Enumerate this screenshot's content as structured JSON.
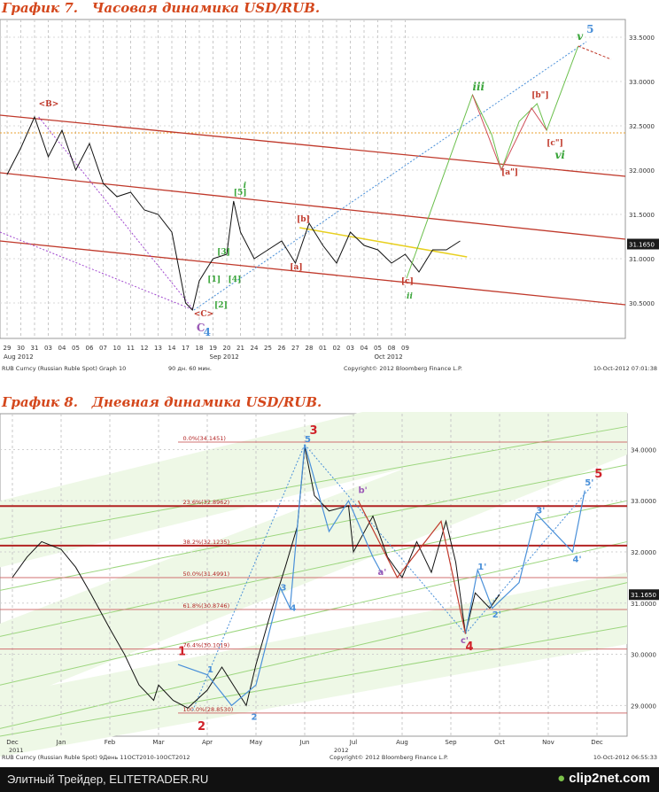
{
  "page": {
    "footer_left": "Элитный Трейдер, ELITETRADER.RU",
    "footer_logo": "clip2net.com"
  },
  "chart_data": [
    {
      "type": "line",
      "title": "График 7.   Часовая динамика USD/RUB.",
      "interval": "hourly",
      "price_labels": [
        "33.5000",
        "33.0000",
        "32.5000",
        "32.0000",
        "31.5000",
        "31.0000",
        "30.5000"
      ],
      "price_values": [
        33.5,
        33.0,
        32.5,
        32.0,
        31.5,
        31.0,
        30.5
      ],
      "ylim": [
        30.1,
        33.7
      ],
      "last_price": "31.1650",
      "x_ticks": [
        "29",
        "30",
        "31",
        "03",
        "04",
        "05",
        "06",
        "07",
        "10",
        "11",
        "12",
        "13",
        "14",
        "17",
        "18",
        "19",
        "20",
        "21",
        "24",
        "25",
        "26",
        "27",
        "28",
        "01",
        "02",
        "03",
        "04",
        "05",
        "08",
        "09"
      ],
      "month_labels": [
        "Aug 2012",
        "Sep 2012",
        "Oct 2012"
      ],
      "footer_left": "RUB Curncy (Russian Ruble Spot) Graph 10",
      "footer_mid": "90 дн. 60 мин.",
      "footer_copyright": "Copyright© 2012 Bloomberg Finance L.P.",
      "footer_right": "10-Oct-2012 07:01:38",
      "price_path": [
        [
          0,
          31.95
        ],
        [
          1,
          32.25
        ],
        [
          2,
          32.6
        ],
        [
          3,
          32.15
        ],
        [
          4,
          32.45
        ],
        [
          5,
          32.0
        ],
        [
          6,
          32.3
        ],
        [
          7,
          31.85
        ],
        [
          8,
          31.7
        ],
        [
          9,
          31.75
        ],
        [
          10,
          31.55
        ],
        [
          11,
          31.5
        ],
        [
          12,
          31.3
        ],
        [
          13,
          30.5
        ],
        [
          13.5,
          30.42
        ],
        [
          14,
          30.75
        ],
        [
          15,
          31.0
        ],
        [
          16,
          31.05
        ],
        [
          16.5,
          31.65
        ],
        [
          17,
          31.3
        ],
        [
          18,
          31.0
        ],
        [
          19,
          31.1
        ],
        [
          20,
          31.2
        ],
        [
          21,
          30.95
        ],
        [
          22,
          31.4
        ],
        [
          23,
          31.15
        ],
        [
          24,
          30.95
        ],
        [
          25,
          31.3
        ],
        [
          26,
          31.15
        ],
        [
          27,
          31.1
        ],
        [
          28,
          30.95
        ],
        [
          29,
          31.05
        ],
        [
          30,
          30.85
        ],
        [
          31,
          31.1
        ],
        [
          32,
          31.1
        ],
        [
          33,
          31.2
        ]
      ],
      "wave_labels": [
        {
          "text": "<B>",
          "color": "#c0392b",
          "x": 2.3,
          "y": 32.72
        },
        {
          "text": "<C>",
          "color": "#c0392b",
          "x": 13.6,
          "y": 30.35
        },
        {
          "text": "C",
          "color": "#9b59b6",
          "x": 13.8,
          "y": 30.18
        },
        {
          "text": "4",
          "color": "#4a90d9",
          "x": 14.3,
          "y": 30.13
        },
        {
          "text": "[1]",
          "color": "#3aa53a",
          "x": 14.6,
          "y": 30.74
        },
        {
          "text": "[2]",
          "color": "#3aa53a",
          "x": 15.1,
          "y": 30.45
        },
        {
          "text": "[3]",
          "color": "#3aa53a",
          "x": 15.3,
          "y": 31.05
        },
        {
          "text": "[4]",
          "color": "#3aa53a",
          "x": 16.1,
          "y": 30.74
        },
        {
          "text": "[5]",
          "color": "#3aa53a",
          "x": 16.5,
          "y": 31.72
        },
        {
          "text": "i",
          "color": "#3aa53a",
          "x": 17.2,
          "y": 31.8
        },
        {
          "text": "[a]",
          "color": "#c0392b",
          "x": 20.6,
          "y": 30.88
        },
        {
          "text": "[b]",
          "color": "#c0392b",
          "x": 21.1,
          "y": 31.42
        },
        {
          "text": "[c]",
          "color": "#c0392b",
          "x": 28.7,
          "y": 30.72
        },
        {
          "text": "ii",
          "color": "#3aa53a",
          "x": 29.1,
          "y": 30.55
        },
        {
          "text": "iii",
          "color": "#3aa53a",
          "x": 33.9,
          "y": 32.9
        },
        {
          "text": "[a\"]",
          "color": "#c0392b",
          "x": 36.0,
          "y": 31.95
        },
        {
          "text": "[b\"]",
          "color": "#c0392b",
          "x": 38.2,
          "y": 32.82
        },
        {
          "text": "[c\"]",
          "color": "#c0392b",
          "x": 39.3,
          "y": 32.28
        },
        {
          "text": "vi",
          "color": "#3aa53a",
          "x": 39.9,
          "y": 32.13
        },
        {
          "text": "v",
          "color": "#3aa53a",
          "x": 41.5,
          "y": 33.47
        },
        {
          "text": "5",
          "color": "#4a90d9",
          "x": 42.2,
          "y": 33.55
        }
      ]
    },
    {
      "type": "line",
      "title": "График 8.   Дневная динамика USD/RUB.",
      "interval": "daily",
      "price_labels": [
        "34.0000",
        "33.0000",
        "32.0000",
        "31.0000",
        "30.0000",
        "29.0000"
      ],
      "price_values": [
        34.0,
        33.0,
        32.0,
        31.0,
        30.0,
        29.0
      ],
      "ylim": [
        28.4,
        34.7
      ],
      "last_price": "31.1650",
      "x_ticks": [
        "Dec",
        "Jan",
        "Feb",
        "Mar",
        "Apr",
        "May",
        "Jun",
        "Jul",
        "Aug",
        "Sep",
        "Oct",
        "Nov",
        "Dec"
      ],
      "year_labels": [
        "2011",
        "2012"
      ],
      "fib_levels": [
        {
          "label": "0.0%(34.1451)",
          "value": 34.1451
        },
        {
          "label": "23.6%(32.8962)",
          "value": 32.8962
        },
        {
          "label": "38.2%(32.1235)",
          "value": 32.1235
        },
        {
          "label": "50.0%(31.4991)",
          "value": 31.4991
        },
        {
          "label": "61.8%(30.8746)",
          "value": 30.8746
        },
        {
          "label": "76.4%(30.1019)",
          "value": 30.1019
        },
        {
          "label": "100.0%(28.8530)",
          "value": 28.853
        }
      ],
      "footer_left": "RUB Curncy (Russian Ruble Spot) 9День 11OCT2010-10OCT2012",
      "footer_copyright": "Copyright© 2012 Bloomberg Finance L.P.",
      "footer_right": "10-Oct-2012 06:55:33",
      "price_path": [
        [
          0,
          31.5
        ],
        [
          0.3,
          31.9
        ],
        [
          0.6,
          32.2
        ],
        [
          1,
          32.05
        ],
        [
          1.3,
          31.7
        ],
        [
          1.6,
          31.2
        ],
        [
          2,
          30.5
        ],
        [
          2.3,
          30.0
        ],
        [
          2.6,
          29.4
        ],
        [
          2.9,
          29.1
        ],
        [
          3,
          29.4
        ],
        [
          3.3,
          29.1
        ],
        [
          3.6,
          28.95
        ],
        [
          4,
          29.3
        ],
        [
          4.3,
          29.75
        ],
        [
          4.6,
          29.3
        ],
        [
          4.8,
          29.0
        ],
        [
          5,
          29.8
        ],
        [
          5.3,
          30.8
        ],
        [
          5.6,
          31.7
        ],
        [
          5.85,
          32.5
        ],
        [
          6.0,
          34.05
        ],
        [
          6.2,
          33.1
        ],
        [
          6.5,
          32.8
        ],
        [
          6.9,
          32.9
        ],
        [
          7.0,
          32.0
        ],
        [
          7.4,
          32.7
        ],
        [
          7.7,
          31.9
        ],
        [
          8.0,
          31.5
        ],
        [
          8.3,
          32.2
        ],
        [
          8.6,
          31.6
        ],
        [
          8.9,
          32.6
        ],
        [
          9.1,
          31.8
        ],
        [
          9.3,
          30.4
        ],
        [
          9.5,
          31.2
        ],
        [
          9.8,
          30.9
        ],
        [
          10.0,
          31.17
        ]
      ],
      "wave_labels": [
        {
          "text": "1",
          "color": "#d0222a",
          "x": 3.4,
          "y": 29.98
        },
        {
          "text": "1",
          "color": "#4a90d9",
          "x": 4.0,
          "y": 29.65
        },
        {
          "text": "2",
          "color": "#d0222a",
          "x": 3.8,
          "y": 28.52
        },
        {
          "text": "2",
          "color": "#4a90d9",
          "x": 4.9,
          "y": 28.72
        },
        {
          "text": "3",
          "color": "#4a90d9",
          "x": 5.5,
          "y": 31.25
        },
        {
          "text": "4",
          "color": "#4a90d9",
          "x": 5.7,
          "y": 30.85
        },
        {
          "text": "5",
          "color": "#4a90d9",
          "x": 6.0,
          "y": 34.15
        },
        {
          "text": "3",
          "color": "#d0222a",
          "x": 6.1,
          "y": 34.3
        },
        {
          "text": "b'",
          "color": "#9b59b6",
          "x": 7.1,
          "y": 33.15
        },
        {
          "text": "a'",
          "color": "#9b59b6",
          "x": 7.5,
          "y": 31.55
        },
        {
          "text": "c'",
          "color": "#9b59b6",
          "x": 9.2,
          "y": 30.22
        },
        {
          "text": "4",
          "color": "#d0222a",
          "x": 9.3,
          "y": 30.08
        },
        {
          "text": "1'",
          "color": "#4a90d9",
          "x": 9.55,
          "y": 31.65
        },
        {
          "text": "2'",
          "color": "#4a90d9",
          "x": 9.85,
          "y": 30.72
        },
        {
          "text": "3'",
          "color": "#4a90d9",
          "x": 10.75,
          "y": 32.75
        },
        {
          "text": "4'",
          "color": "#4a90d9",
          "x": 11.5,
          "y": 31.8
        },
        {
          "text": "5'",
          "color": "#4a90d9",
          "x": 11.75,
          "y": 33.3
        },
        {
          "text": "5",
          "color": "#d0222a",
          "x": 11.95,
          "y": 33.45
        }
      ]
    }
  ]
}
